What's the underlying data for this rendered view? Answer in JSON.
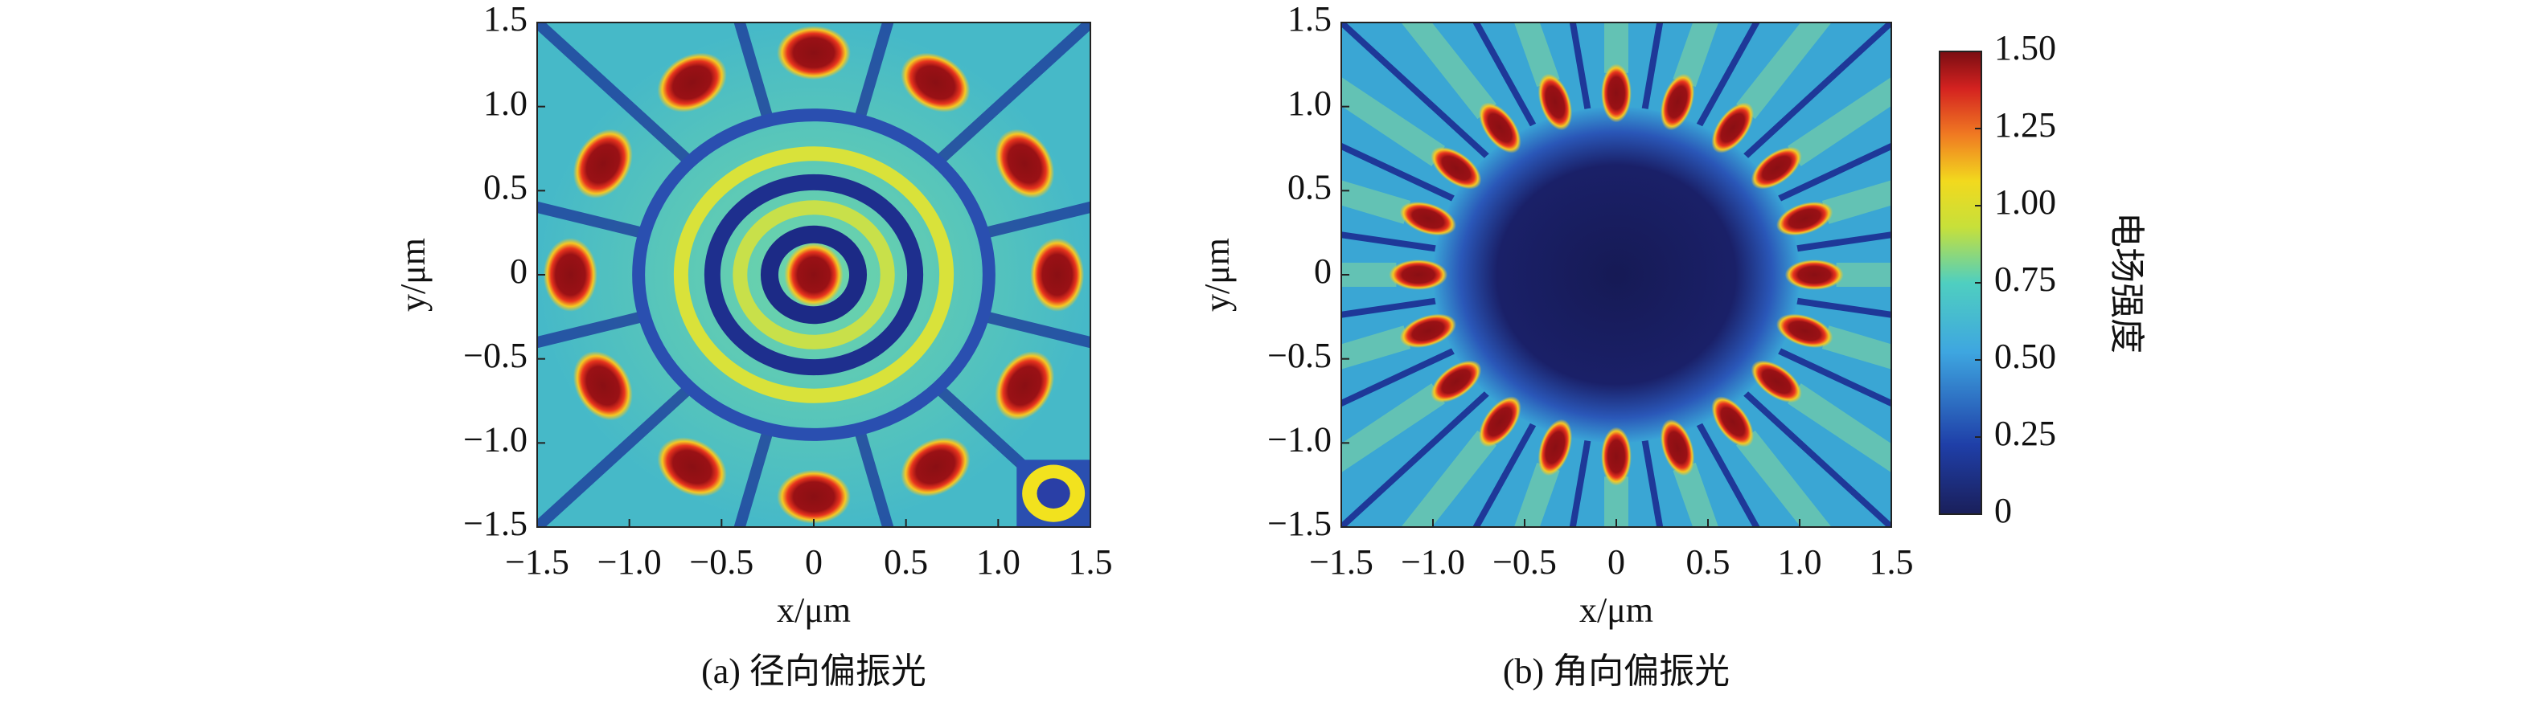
{
  "chart_data": [
    {
      "type": "heatmap",
      "caption": "(a) 径向偏振光",
      "x_label": "x/μm",
      "y_label": "y/μm",
      "xlim": [
        -1.5,
        1.5
      ],
      "ylim": [
        -1.5,
        1.5
      ],
      "xticks": [
        {
          "value": -1.5,
          "label": "−1.5"
        },
        {
          "value": -1,
          "label": "−1.0"
        },
        {
          "value": -0.5,
          "label": "−0.5"
        },
        0,
        0.5,
        {
          "value": 1,
          "label": "1.0"
        },
        1.5
      ],
      "yticks": [
        {
          "value": -1.5,
          "label": "−1.5"
        },
        {
          "value": -1,
          "label": "−1.0"
        },
        {
          "value": -0.5,
          "label": "−0.5"
        },
        0,
        0.5,
        {
          "value": 1,
          "label": "1.0"
        },
        1.5
      ]
    },
    {
      "type": "heatmap",
      "caption": "(b) 角向偏振光",
      "x_label": "x/μm",
      "y_label": "y/μm",
      "xlim": [
        -1.5,
        1.5
      ],
      "ylim": [
        -1.5,
        1.5
      ],
      "xticks": [
        {
          "value": -1.5,
          "label": "−1.5"
        },
        {
          "value": -1,
          "label": "−1.0"
        },
        {
          "value": -0.5,
          "label": "−0.5"
        },
        0,
        0.5,
        {
          "value": 1,
          "label": "1.0"
        },
        1.5
      ],
      "yticks": [
        {
          "value": -1.5,
          "label": "−1.5"
        },
        {
          "value": -1,
          "label": "−1.0"
        },
        {
          "value": -0.5,
          "label": "−0.5"
        },
        0,
        0.5,
        {
          "value": 1,
          "label": "1.0"
        },
        1.5
      ],
      "colorbar": {
        "label": "电场强度",
        "lim": [
          0,
          1.5
        ],
        "ticks": [
          0,
          0.25,
          {
            "value": 0.5,
            "label": "0.50"
          },
          0.75,
          {
            "value": 1,
            "label": "1.00"
          },
          1.25,
          {
            "value": 1.5,
            "label": "1.50"
          }
        ]
      }
    }
  ]
}
